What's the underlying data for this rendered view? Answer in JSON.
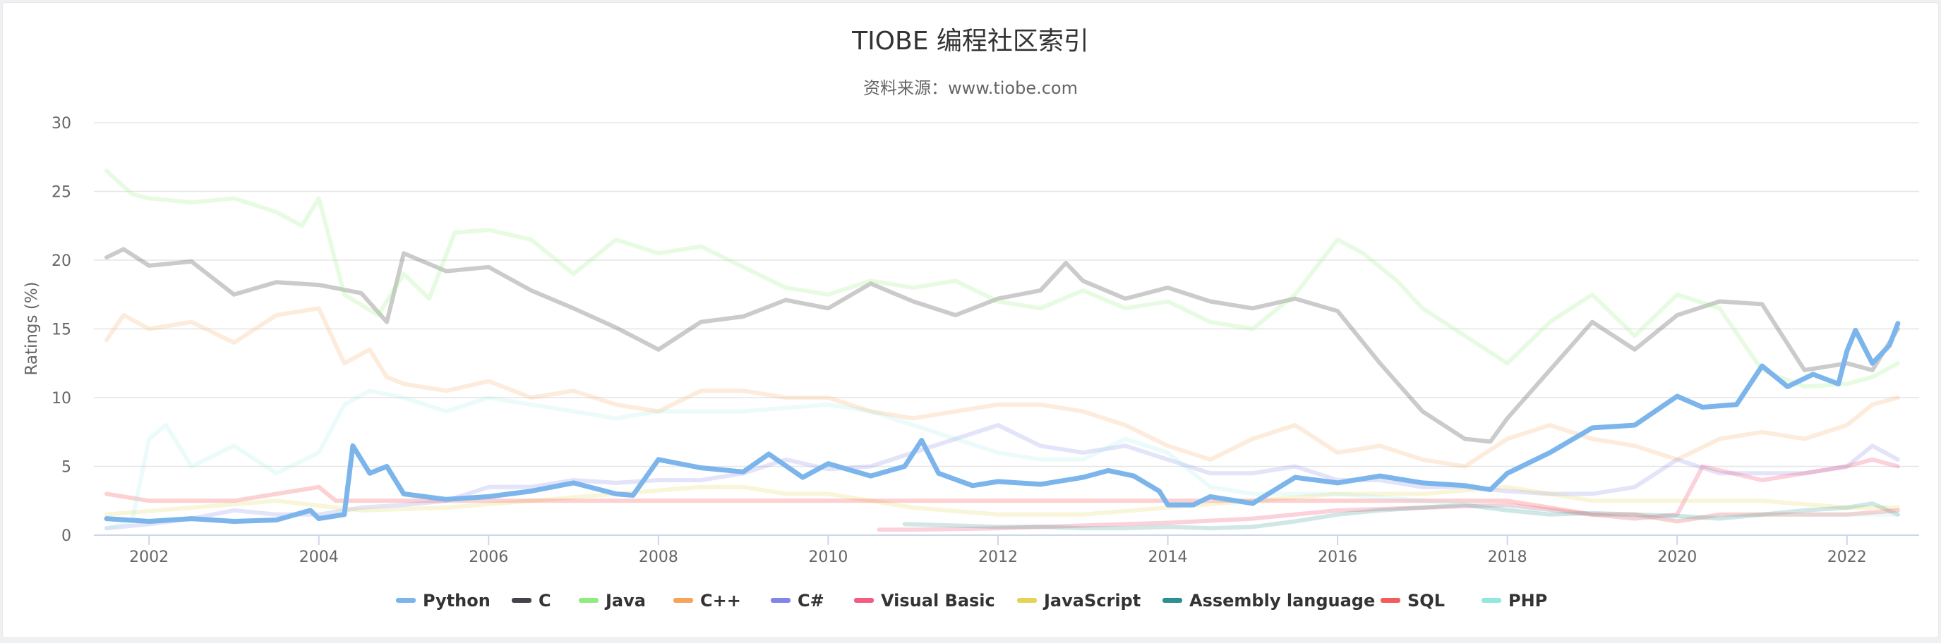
{
  "chart_data": {
    "type": "line",
    "title": "TIOBE 编程社区索引",
    "subtitle": "资料来源：www.tiobe.com",
    "xlabel": "",
    "ylabel": "Ratings (%)",
    "xlim": [
      2001.35,
      2022.85
    ],
    "ylim": [
      0,
      30
    ],
    "x_ticks": [
      "2002",
      "2004",
      "2006",
      "2008",
      "2010",
      "2012",
      "2014",
      "2016",
      "2018",
      "2020",
      "2022"
    ],
    "y_ticks": [
      "0",
      "5",
      "10",
      "15",
      "20",
      "25",
      "30"
    ],
    "grid": true,
    "legend_position": "bottom-center",
    "highlighted_series": "Python",
    "series": [
      {
        "name": "Python",
        "color": "#7cb5ec",
        "x": [
          2001.5,
          2002.0,
          2002.5,
          2003.0,
          2003.5,
          2003.9,
          2004.0,
          2004.3,
          2004.4,
          2004.6,
          2004.8,
          2005.0,
          2005.5,
          2006.0,
          2006.5,
          2007.0,
          2007.5,
          2007.7,
          2008.0,
          2008.5,
          2009.0,
          2009.3,
          2009.7,
          2010.0,
          2010.5,
          2010.9,
          2011.1,
          2011.3,
          2011.7,
          2012.0,
          2012.5,
          2013.0,
          2013.3,
          2013.6,
          2013.9,
          2014.0,
          2014.3,
          2014.5,
          2015.0,
          2015.5,
          2016.0,
          2016.5,
          2017.0,
          2017.5,
          2017.8,
          2018.0,
          2018.5,
          2019.0,
          2019.5,
          2020.0,
          2020.3,
          2020.7,
          2021.0,
          2021.3,
          2021.6,
          2021.9,
          2022.0,
          2022.1,
          2022.3,
          2022.5,
          2022.6
        ],
        "values": [
          1.2,
          1.0,
          1.2,
          1.0,
          1.1,
          1.8,
          1.2,
          1.5,
          6.5,
          4.5,
          5.0,
          3.0,
          2.6,
          2.8,
          3.2,
          3.8,
          3.0,
          2.9,
          5.5,
          4.9,
          4.6,
          5.9,
          4.2,
          5.2,
          4.3,
          5.0,
          6.9,
          4.5,
          3.6,
          3.9,
          3.7,
          4.2,
          4.7,
          4.3,
          3.2,
          2.2,
          2.2,
          2.8,
          2.3,
          4.2,
          3.8,
          4.3,
          3.8,
          3.6,
          3.3,
          4.5,
          6.0,
          7.8,
          8.0,
          10.1,
          9.3,
          9.5,
          12.3,
          10.8,
          11.7,
          11.0,
          13.4,
          14.9,
          12.5,
          13.8,
          15.4
        ],
        "opacity": 1,
        "width": 7
      },
      {
        "name": "C",
        "color": "#434348",
        "x": [
          2001.5,
          2001.7,
          2002.0,
          2002.5,
          2003.0,
          2003.5,
          2004.0,
          2004.5,
          2004.8,
          2005.0,
          2005.5,
          2006.0,
          2006.5,
          2007.0,
          2007.5,
          2008.0,
          2008.5,
          2009.0,
          2009.5,
          2010.0,
          2010.5,
          2011.0,
          2011.5,
          2012.0,
          2012.5,
          2012.8,
          2013.0,
          2013.5,
          2014.0,
          2014.5,
          2015.0,
          2015.5,
          2016.0,
          2016.5,
          2017.0,
          2017.5,
          2017.8,
          2018.0,
          2018.5,
          2019.0,
          2019.5,
          2020.0,
          2020.5,
          2021.0,
          2021.5,
          2022.0,
          2022.3,
          2022.6
        ],
        "values": [
          20.2,
          20.8,
          19.6,
          19.9,
          17.5,
          18.4,
          18.2,
          17.6,
          15.5,
          20.5,
          19.2,
          19.5,
          17.8,
          16.5,
          15.1,
          13.5,
          15.5,
          15.9,
          17.1,
          16.5,
          18.3,
          17.0,
          16.0,
          17.2,
          17.8,
          19.8,
          18.5,
          17.2,
          18.0,
          17.0,
          16.5,
          17.2,
          16.3,
          12.5,
          9.0,
          7.0,
          6.8,
          8.5,
          12.0,
          15.5,
          13.5,
          16.0,
          17.0,
          16.8,
          12.0,
          12.5,
          12.0,
          15.0
        ],
        "opacity": 0.28,
        "width": 6
      },
      {
        "name": "Java",
        "color": "#90ed7d",
        "x": [
          2001.5,
          2001.8,
          2002.0,
          2002.5,
          2003.0,
          2003.5,
          2003.8,
          2004.0,
          2004.3,
          2004.7,
          2005.0,
          2005.3,
          2005.6,
          2006.0,
          2006.5,
          2007.0,
          2007.5,
          2008.0,
          2008.5,
          2009.0,
          2009.5,
          2010.0,
          2010.5,
          2011.0,
          2011.5,
          2012.0,
          2012.5,
          2013.0,
          2013.5,
          2014.0,
          2014.5,
          2015.0,
          2015.5,
          2016.0,
          2016.3,
          2016.7,
          2017.0,
          2017.5,
          2018.0,
          2018.5,
          2019.0,
          2019.5,
          2020.0,
          2020.5,
          2021.0,
          2021.5,
          2022.0,
          2022.3,
          2022.6
        ],
        "values": [
          26.5,
          24.8,
          24.5,
          24.2,
          24.5,
          23.5,
          22.5,
          24.5,
          17.5,
          16.0,
          19.0,
          17.2,
          22.0,
          22.2,
          21.5,
          19.0,
          21.5,
          20.5,
          21.0,
          19.5,
          18.0,
          17.5,
          18.5,
          18.0,
          18.5,
          17.0,
          16.5,
          17.8,
          16.5,
          17.0,
          15.5,
          15.0,
          17.5,
          21.5,
          20.5,
          18.5,
          16.5,
          14.5,
          12.5,
          15.5,
          17.5,
          14.5,
          17.5,
          16.5,
          12.0,
          10.8,
          11.0,
          11.5,
          12.5
        ],
        "opacity": 0.22,
        "width": 6
      },
      {
        "name": "C++",
        "color": "#f7a35c",
        "x": [
          2001.5,
          2001.7,
          2002.0,
          2002.5,
          2003.0,
          2003.5,
          2004.0,
          2004.3,
          2004.6,
          2004.8,
          2005.0,
          2005.5,
          2006.0,
          2006.5,
          2007.0,
          2007.5,
          2008.0,
          2008.5,
          2009.0,
          2009.5,
          2010.0,
          2010.5,
          2011.0,
          2011.5,
          2012.0,
          2012.5,
          2013.0,
          2013.5,
          2014.0,
          2014.5,
          2015.0,
          2015.5,
          2016.0,
          2016.5,
          2017.0,
          2017.5,
          2018.0,
          2018.5,
          2019.0,
          2019.5,
          2020.0,
          2020.5,
          2021.0,
          2021.5,
          2022.0,
          2022.3,
          2022.6
        ],
        "values": [
          14.2,
          16.0,
          15.0,
          15.5,
          14.0,
          16.0,
          16.5,
          12.5,
          13.5,
          11.5,
          11.0,
          10.5,
          11.2,
          10.0,
          10.5,
          9.5,
          9.0,
          10.5,
          10.5,
          10.0,
          10.0,
          9.0,
          8.5,
          9.0,
          9.5,
          9.5,
          9.0,
          8.0,
          6.5,
          5.5,
          7.0,
          8.0,
          6.0,
          6.5,
          5.5,
          5.0,
          7.0,
          8.0,
          7.0,
          6.5,
          5.5,
          7.0,
          7.5,
          7.0,
          8.0,
          9.5,
          10.0
        ],
        "opacity": 0.22,
        "width": 6
      },
      {
        "name": "C#",
        "color": "#8085e9",
        "x": [
          2001.5,
          2002.0,
          2002.5,
          2003.0,
          2003.5,
          2004.0,
          2004.5,
          2005.0,
          2005.5,
          2006.0,
          2006.5,
          2007.0,
          2007.5,
          2008.0,
          2008.5,
          2009.0,
          2009.5,
          2010.0,
          2010.5,
          2011.0,
          2011.5,
          2012.0,
          2012.5,
          2013.0,
          2013.5,
          2014.0,
          2014.5,
          2015.0,
          2015.5,
          2016.0,
          2016.5,
          2017.0,
          2017.5,
          2018.0,
          2018.5,
          2019.0,
          2019.5,
          2020.0,
          2020.5,
          2021.0,
          2021.5,
          2022.0,
          2022.3,
          2022.6
        ],
        "values": [
          0.5,
          0.8,
          1.2,
          1.8,
          1.5,
          1.5,
          2.0,
          2.2,
          2.5,
          3.5,
          3.5,
          4.0,
          3.8,
          4.0,
          4.0,
          4.5,
          5.5,
          4.8,
          5.0,
          6.0,
          7.0,
          8.0,
          6.5,
          6.0,
          6.5,
          5.5,
          4.5,
          4.5,
          5.0,
          4.0,
          4.0,
          3.5,
          3.5,
          3.2,
          3.0,
          3.0,
          3.5,
          5.5,
          4.5,
          4.5,
          4.5,
          5.0,
          6.5,
          5.5
        ],
        "opacity": 0.22,
        "width": 6
      },
      {
        "name": "Visual Basic",
        "color": "#f15c80",
        "x": [
          2010.6,
          2011.0,
          2012.0,
          2013.0,
          2014.0,
          2015.0,
          2016.0,
          2017.0,
          2018.0,
          2019.0,
          2019.5,
          2020.0,
          2020.3,
          2021.0,
          2021.5,
          2022.0,
          2022.3,
          2022.6
        ],
        "values": [
          0.4,
          0.4,
          0.5,
          0.7,
          0.9,
          1.2,
          1.8,
          2.0,
          2.2,
          1.5,
          1.2,
          1.5,
          5.0,
          4.0,
          4.5,
          5.0,
          5.5,
          5.0
        ],
        "opacity": 0.28,
        "width": 6
      },
      {
        "name": "JavaScript",
        "color": "#e4d354",
        "x": [
          2001.5,
          2002.5,
          2003.5,
          2004.5,
          2005.5,
          2006.5,
          2007.5,
          2008.5,
          2009.0,
          2009.5,
          2010.0,
          2011.0,
          2012.0,
          2013.0,
          2014.0,
          2015.0,
          2016.0,
          2017.0,
          2018.0,
          2019.0,
          2020.0,
          2021.0,
          2022.0,
          2022.6
        ],
        "values": [
          1.5,
          2.0,
          2.5,
          1.8,
          2.0,
          2.5,
          3.0,
          3.5,
          3.5,
          3.0,
          3.0,
          2.0,
          1.5,
          1.5,
          2.0,
          2.5,
          3.0,
          3.0,
          3.5,
          2.5,
          2.5,
          2.5,
          2.0,
          2.0
        ],
        "opacity": 0.22,
        "width": 6
      },
      {
        "name": "Assembly language",
        "color": "#2b908f",
        "x": [
          2010.9,
          2011.5,
          2012.0,
          2012.5,
          2013.0,
          2013.5,
          2014.0,
          2014.5,
          2015.0,
          2015.5,
          2016.0,
          2016.5,
          2017.0,
          2017.5,
          2018.0,
          2018.5,
          2019.0,
          2019.5,
          2020.0,
          2020.5,
          2021.0,
          2021.5,
          2022.0,
          2022.3,
          2022.6
        ],
        "values": [
          0.8,
          0.7,
          0.6,
          0.6,
          0.5,
          0.5,
          0.6,
          0.5,
          0.6,
          1.0,
          1.5,
          1.8,
          2.0,
          2.2,
          1.8,
          1.5,
          1.6,
          1.5,
          1.4,
          1.2,
          1.5,
          1.8,
          2.0,
          2.3,
          1.5
        ],
        "opacity": 0.22,
        "width": 6
      },
      {
        "name": "SQL",
        "color": "#f45b5b",
        "x": [
          2001.5,
          2002.0,
          2003.0,
          2003.5,
          2004.0,
          2004.2,
          2006.0,
          2008.0,
          2010.0,
          2012.0,
          2014.0,
          2016.0,
          2018.0,
          2018.5,
          2019.0,
          2019.5,
          2020.0,
          2020.5,
          2021.0,
          2021.5,
          2022.0,
          2022.6
        ],
        "values": [
          3.0,
          2.5,
          2.5,
          3.0,
          3.5,
          2.5,
          2.5,
          2.5,
          2.5,
          2.5,
          2.5,
          2.5,
          2.5,
          2.0,
          1.5,
          1.5,
          1.0,
          1.5,
          1.5,
          1.5,
          1.5,
          1.8
        ],
        "opacity": 0.28,
        "width": 6
      },
      {
        "name": "PHP",
        "color": "#91e8e1",
        "x": [
          2001.5,
          2001.8,
          2002.0,
          2002.2,
          2002.5,
          2003.0,
          2003.5,
          2004.0,
          2004.3,
          2004.6,
          2005.0,
          2005.5,
          2006.0,
          2006.5,
          2007.0,
          2007.5,
          2008.0,
          2008.5,
          2009.0,
          2010.0,
          2010.5,
          2011.0,
          2011.5,
          2012.0,
          2012.5,
          2013.0,
          2013.5,
          2014.0,
          2014.5,
          2015.0,
          2016.0,
          2017.0,
          2018.0,
          2019.0,
          2020.0,
          2021.0,
          2022.0,
          2022.6
        ],
        "values": [
          0.5,
          1.0,
          7.0,
          8.0,
          5.0,
          6.5,
          4.5,
          6.0,
          9.5,
          10.5,
          10.0,
          9.0,
          10.0,
          9.5,
          9.0,
          8.5,
          9.0,
          9.0,
          9.0,
          9.5,
          9.0,
          8.0,
          7.0,
          6.0,
          5.5,
          5.5,
          7.0,
          6.0,
          3.5,
          3.0,
          3.0,
          2.5,
          2.0,
          1.5,
          1.2,
          1.5,
          1.5,
          1.5
        ],
        "opacity": 0.18,
        "width": 6
      }
    ]
  }
}
